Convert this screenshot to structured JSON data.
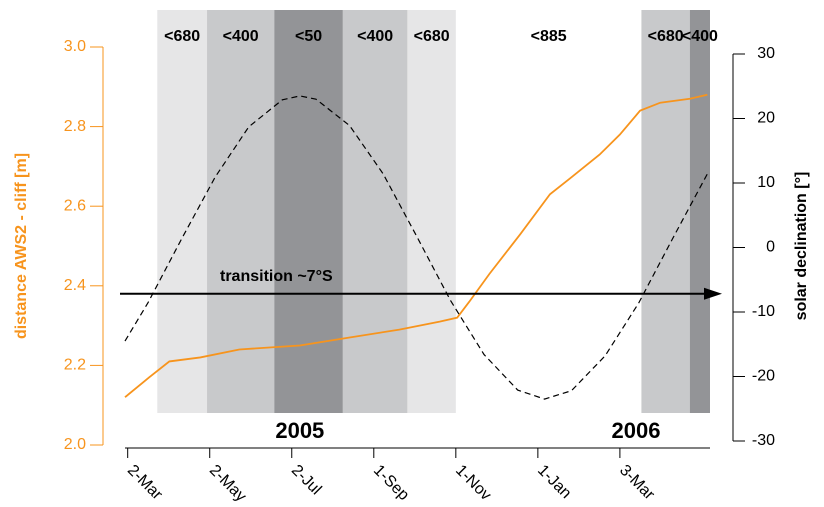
{
  "chart_data": {
    "type": "line",
    "y_label": "distance AWS2 - cliff [m]",
    "y2_label": "solar declination [°]",
    "xlim": [
      58,
      493
    ],
    "xticks": [
      {
        "value": 60,
        "label": "2-Mar"
      },
      {
        "value": 121,
        "label": "2-May"
      },
      {
        "value": 182,
        "label": "2-Jul"
      },
      {
        "value": 243,
        "label": "1-Sep"
      },
      {
        "value": 304,
        "label": "1-Nov"
      },
      {
        "value": 365,
        "label": "1-Jan"
      },
      {
        "value": 426,
        "label": "3-Mar"
      }
    ],
    "ylim": [
      2.0,
      3.0
    ],
    "yticks": [
      {
        "value": 2.0,
        "label": "2.0"
      },
      2.2,
      2.4,
      2.6,
      2.8,
      {
        "value": 3.0,
        "label": "3.0"
      }
    ],
    "y2lim": [
      -30,
      30
    ],
    "y2ticks": [
      -30,
      -20,
      -10,
      0,
      10,
      20,
      30
    ],
    "axis_color": "#f7941d",
    "bands": [
      {
        "label": "<680",
        "start": 82,
        "end": 119,
        "color": "#e6e6e7"
      },
      {
        "label": "<400",
        "start": 119,
        "end": 169,
        "color": "#c8c9cb"
      },
      {
        "label": "<50",
        "start": 169,
        "end": 220,
        "color": "#939497"
      },
      {
        "label": "<400",
        "start": 220,
        "end": 268,
        "color": "#c8c9cb"
      },
      {
        "label": "<680",
        "start": 268,
        "end": 304,
        "color": "#e6e6e7"
      },
      {
        "label": "<885",
        "start": 304,
        "end": 442,
        "color": "none"
      },
      {
        "label": "<680",
        "start": 442,
        "end": 478,
        "color": "#c8c9cb"
      },
      {
        "label": "<400",
        "start": 478,
        "end": 493,
        "color": "#939497"
      }
    ],
    "years": [
      {
        "label": "2005",
        "x": 188
      },
      {
        "label": "2006",
        "x": 438
      }
    ],
    "annotation": {
      "text": "transition ~7°S",
      "y": 2.38
    },
    "series": [
      {
        "color": "#f7941d",
        "style": "solid",
        "x": [
          58,
          76,
          91,
          114,
          143,
          188,
          225,
          262,
          277,
          292,
          305,
          314,
          329,
          352,
          374,
          389,
          411,
          426,
          441,
          456,
          478,
          491
        ],
        "values": [
          2.12,
          2.17,
          2.21,
          2.22,
          2.24,
          2.25,
          2.27,
          2.29,
          2.3,
          2.31,
          2.32,
          2.36,
          2.43,
          2.53,
          2.63,
          2.67,
          2.73,
          2.78,
          2.84,
          2.86,
          2.87,
          2.88
        ]
      },
      {
        "color": "#000000",
        "style": "dashed",
        "axis": "y2",
        "x": [
          58,
          75,
          100,
          125,
          150,
          175,
          188,
          200,
          225,
          250,
          275,
          300,
          325,
          350,
          370,
          390,
          415,
          440,
          465,
          491
        ],
        "values": [
          -14.5,
          -8.6,
          1.3,
          10.9,
          18.7,
          22.9,
          23.5,
          23.0,
          18.9,
          11.4,
          1.7,
          -8.2,
          -16.6,
          -22.1,
          -23.5,
          -22.2,
          -16.8,
          -8.6,
          1.3,
          11.4
        ]
      }
    ]
  }
}
